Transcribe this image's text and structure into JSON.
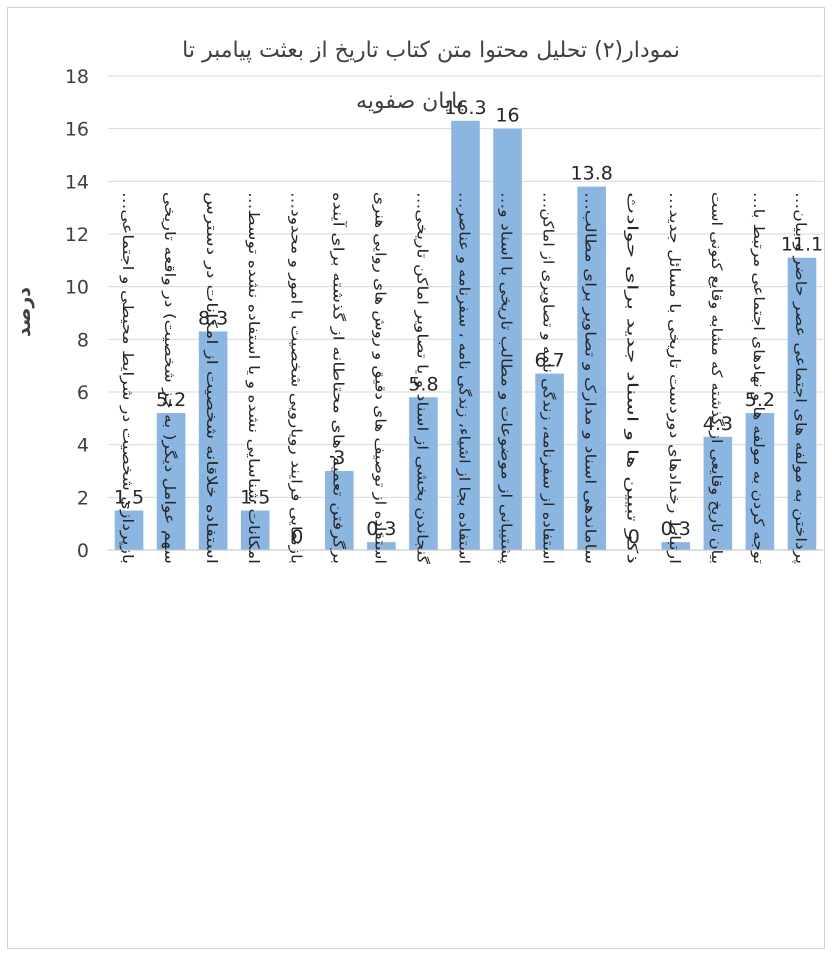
{
  "chart_data": {
    "type": "bar",
    "title_line1": "نمودار(۲) تحلیل محتوا متن کتاب تاریخ از بعثت پیامبر تا",
    "title_line2": "پایان صفویه",
    "ylabel": "درصد",
    "xlabel": "",
    "ylim": [
      0,
      18
    ],
    "ytick_step": 2,
    "grid": true,
    "bar_color": "#8CB6E2",
    "categories": [
      "بازپردازی شخصیت در شرایط محیطی و اجتماعی…",
      "سهم عوامل دیگر( به جز شخصیت) در واقعه تاریخی",
      "استفاده خلاقانه شخصیت از امکانات در دسترس",
      "امکانات شناسایی نشده و یا استفاده نشده توسط…",
      "بازنمایی فرایند رویارویی شخصیت با امور و محدود…",
      "برگرفتن تعمیم های محتاطانه از گذشته برای آینده",
      "استفاده از توصیف های دقیق و روش های روایی هنری",
      "گنجاندن بخشی از اسناد و یا تصاویر اماکن تاریخی…",
      "استفاده بجا از اشیاء، زندگی نامه ، سفرنامه و عناصر…",
      "پشتیبانی از موضوعات و مطالب تاریخی با اسناد و…",
      "استفاده از سفرنامه، زندگی نامه و تصاویری از اماکن…",
      "ساماندهی اسناد و مدارک و تصاویر برای مطالب…",
      "ذکر تبیین ها و اسناد جدید برای حوادث",
      "ارتباط رخدادهای دوردست تاریخی با مسائل جدید…",
      "بیان تاریخ وقایعی از گذشته که مشابه وقایع کنونی است",
      "توجه کردن به مولفه ها و نهادهای اجتماعی مرتبط با…",
      "پرداختن به مولفه های اجتماعی عصر حاضر و بیان…"
    ],
    "values": [
      1.5,
      5.2,
      8.3,
      1.5,
      0,
      3,
      0.3,
      5.8,
      16.3,
      16,
      6.7,
      13.8,
      0,
      0.3,
      4.3,
      5.2,
      11.1
    ]
  }
}
